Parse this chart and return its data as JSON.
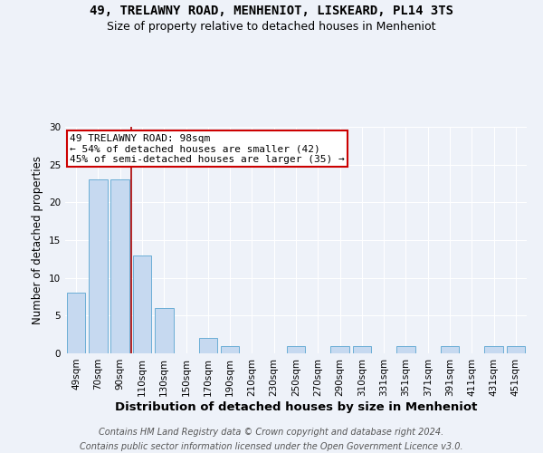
{
  "title": "49, TRELAWNY ROAD, MENHENIOT, LISKEARD, PL14 3TS",
  "subtitle": "Size of property relative to detached houses in Menheniot",
  "xlabel": "Distribution of detached houses by size in Menheniot",
  "ylabel": "Number of detached properties",
  "categories": [
    "49sqm",
    "70sqm",
    "90sqm",
    "110sqm",
    "130sqm",
    "150sqm",
    "170sqm",
    "190sqm",
    "210sqm",
    "230sqm",
    "250sqm",
    "270sqm",
    "290sqm",
    "310sqm",
    "331sqm",
    "351sqm",
    "371sqm",
    "391sqm",
    "411sqm",
    "431sqm",
    "451sqm"
  ],
  "values": [
    8,
    23,
    23,
    13,
    6,
    0,
    2,
    1,
    0,
    0,
    1,
    0,
    1,
    1,
    0,
    1,
    0,
    1,
    0,
    1,
    1
  ],
  "bar_color": "#c6d9f0",
  "bar_edge_color": "#6baed6",
  "vline_color": "#aa0000",
  "annotation_line1": "49 TRELAWNY ROAD: 98sqm",
  "annotation_line2": "← 54% of detached houses are smaller (42)",
  "annotation_line3": "45% of semi-detached houses are larger (35) →",
  "annotation_box_color": "#ffffff",
  "annotation_border_color": "#cc0000",
  "ylim": [
    0,
    30
  ],
  "footnote_line1": "Contains HM Land Registry data © Crown copyright and database right 2024.",
  "footnote_line2": "Contains public sector information licensed under the Open Government Licence v3.0.",
  "background_color": "#eef2f9",
  "title_fontsize": 10,
  "subtitle_fontsize": 9,
  "xlabel_fontsize": 9.5,
  "ylabel_fontsize": 8.5,
  "tick_fontsize": 7.5,
  "footnote_fontsize": 7,
  "annotation_fontsize": 8
}
